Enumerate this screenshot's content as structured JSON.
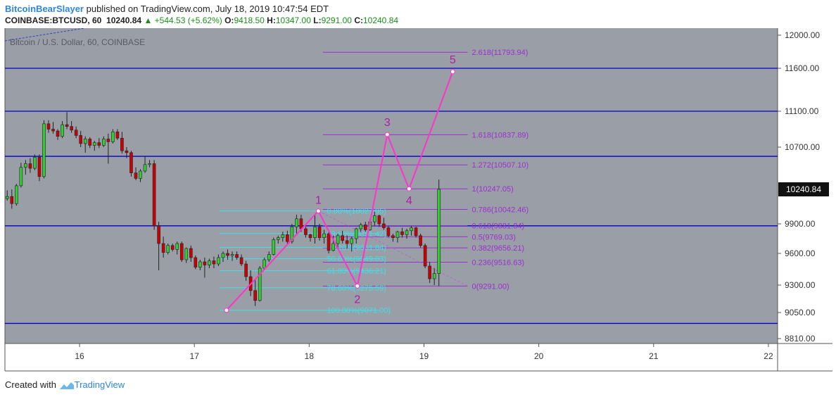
{
  "header": {
    "user": "BitcoinBearSlayer",
    "published_text": " published on TradingView.com, July 18, 2019 10:47:54 EDT",
    "symbol": "COINBASE:BTCUSD, 60",
    "last": "10240.84",
    "change": "+544.53 (+5.62%)",
    "o_label": "O:",
    "o_value": "9418.50",
    "h_label": "H:",
    "h_value": "10347.00",
    "l_label": "L:",
    "l_value": "9291.00",
    "c_label": "C:",
    "c_value": "10240.84"
  },
  "chart_title": "Bitcoin / U.S. Dollar, 60, COINBASE",
  "price_tag": "10240.84",
  "footer": {
    "created_with": "Created with",
    "brand": "TradingView"
  },
  "colors": {
    "background": "#9a9ea6",
    "up": "#33cc33",
    "down": "#cc0000",
    "fib_magenta": "#9b30d0",
    "fib_cyan": "#40e0e8",
    "wave": "#ff33cc",
    "hline": "#0000cc"
  },
  "chart_data": {
    "type": "candlestick",
    "title": "Bitcoin / U.S. Dollar, 60, COINBASE",
    "x_ticks": [
      {
        "label": "16",
        "x": 16
      },
      {
        "label": "17",
        "x": 17
      },
      {
        "label": "18",
        "x": 18
      },
      {
        "label": "19",
        "x": 19
      },
      {
        "label": "20",
        "x": 20
      },
      {
        "label": "21",
        "x": 21
      },
      {
        "label": "22",
        "x": 22
      }
    ],
    "y_ticks": [
      {
        "label": "12000.00",
        "v": 12000
      },
      {
        "label": "11600.00",
        "v": 11600
      },
      {
        "label": "11100.00",
        "v": 11100
      },
      {
        "label": "10700.00",
        "v": 10700
      },
      {
        "label": "9900.00",
        "v": 9900
      },
      {
        "label": "9600.00",
        "v": 9600
      },
      {
        "label": "9300.00",
        "v": 9300
      },
      {
        "label": "9050.00",
        "v": 9050
      },
      {
        "label": "8810.00",
        "v": 8810
      }
    ],
    "xlim": [
      15.35,
      22.08
    ],
    "horizontal_lines": [
      11600,
      11100,
      10600,
      9880,
      8950
    ],
    "candles": [
      [
        15.37,
        10150,
        10230,
        10130,
        10170
      ],
      [
        15.41,
        10170,
        10240,
        10050,
        10100
      ],
      [
        15.45,
        10100,
        10300,
        10080,
        10280
      ],
      [
        15.49,
        10280,
        10530,
        10260,
        10480
      ],
      [
        15.53,
        10480,
        10560,
        10400,
        10520
      ],
      [
        15.57,
        10520,
        10580,
        10420,
        10470
      ],
      [
        15.61,
        10470,
        10620,
        10450,
        10590
      ],
      [
        15.65,
        10590,
        10620,
        10330,
        10380
      ],
      [
        15.69,
        10380,
        11000,
        10360,
        10960
      ],
      [
        15.73,
        10960,
        11000,
        10860,
        10900
      ],
      [
        15.77,
        10900,
        10980,
        10850,
        10880
      ],
      [
        15.81,
        10880,
        10900,
        10780,
        10820
      ],
      [
        15.85,
        10820,
        10990,
        10800,
        10950
      ],
      [
        15.89,
        10950,
        11090,
        10900,
        10930
      ],
      [
        15.93,
        10930,
        10990,
        10860,
        10890
      ],
      [
        15.97,
        10890,
        10930,
        10800,
        10830
      ],
      [
        16.01,
        10830,
        10880,
        10700,
        10740
      ],
      [
        16.05,
        10740,
        10820,
        10640,
        10790
      ],
      [
        16.09,
        10790,
        10810,
        10690,
        10720
      ],
      [
        16.13,
        10720,
        10770,
        10660,
        10750
      ],
      [
        16.17,
        10750,
        10800,
        10690,
        10720
      ],
      [
        16.21,
        10720,
        10820,
        10700,
        10790
      ],
      [
        16.25,
        10790,
        10850,
        10520,
        10760
      ],
      [
        16.29,
        10760,
        10900,
        10740,
        10870
      ],
      [
        16.33,
        10870,
        10900,
        10780,
        10800
      ],
      [
        16.37,
        10800,
        10870,
        10630,
        10660
      ],
      [
        16.41,
        10660,
        10700,
        10580,
        10640
      ],
      [
        16.45,
        10640,
        10660,
        10380,
        10420
      ],
      [
        16.49,
        10420,
        10480,
        10340,
        10360
      ],
      [
        16.53,
        10360,
        10460,
        10320,
        10440
      ],
      [
        16.57,
        10440,
        10600,
        10420,
        10510
      ],
      [
        16.61,
        10510,
        10560,
        10480,
        10520
      ],
      [
        16.65,
        10520,
        10560,
        9840,
        9880
      ],
      [
        16.69,
        9880,
        9920,
        9440,
        9700
      ],
      [
        16.73,
        9700,
        9770,
        9560,
        9610
      ],
      [
        16.77,
        9610,
        9700,
        9590,
        9680
      ],
      [
        16.81,
        9680,
        9700,
        9620,
        9640
      ],
      [
        16.85,
        9640,
        9720,
        9590,
        9700
      ],
      [
        16.89,
        9700,
        9720,
        9520,
        9540
      ],
      [
        16.93,
        9540,
        9660,
        9510,
        9650
      ],
      [
        16.97,
        9650,
        9680,
        9520,
        9560
      ],
      [
        17.01,
        9560,
        9580,
        9450,
        9470
      ],
      [
        17.05,
        9470,
        9540,
        9440,
        9520
      ],
      [
        17.09,
        9520,
        9560,
        9370,
        9490
      ],
      [
        17.13,
        9490,
        9550,
        9460,
        9530
      ],
      [
        17.17,
        9530,
        9570,
        9460,
        9500
      ],
      [
        17.21,
        9500,
        9590,
        9480,
        9560
      ],
      [
        17.25,
        9560,
        9620,
        9520,
        9600
      ],
      [
        17.29,
        9600,
        9640,
        9540,
        9580
      ],
      [
        17.33,
        9580,
        9620,
        9530,
        9590
      ],
      [
        17.37,
        9590,
        9620,
        9540,
        9560
      ],
      [
        17.41,
        9560,
        9590,
        9480,
        9500
      ],
      [
        17.45,
        9500,
        9530,
        9340,
        9380
      ],
      [
        17.49,
        9380,
        9440,
        9200,
        9250
      ],
      [
        17.53,
        9250,
        9350,
        9110,
        9160
      ],
      [
        17.57,
        9160,
        9480,
        9150,
        9460
      ],
      [
        17.61,
        9460,
        9560,
        9440,
        9540
      ],
      [
        17.65,
        9540,
        9620,
        9520,
        9590
      ],
      [
        17.69,
        9590,
        9760,
        9580,
        9740
      ],
      [
        17.73,
        9740,
        9780,
        9700,
        9760
      ],
      [
        17.77,
        9760,
        9820,
        9720,
        9790
      ],
      [
        17.81,
        9790,
        9830,
        9700,
        9720
      ],
      [
        17.85,
        9720,
        9900,
        9700,
        9870
      ],
      [
        17.89,
        9870,
        9990,
        9800,
        9950
      ],
      [
        17.93,
        9950,
        9990,
        9820,
        9850
      ],
      [
        17.97,
        9850,
        9870,
        9760,
        9790
      ],
      [
        18.01,
        9790,
        9800,
        9720,
        9760
      ],
      [
        18.05,
        9760,
        9990,
        9700,
        9870
      ],
      [
        18.09,
        9870,
        9900,
        9730,
        9760
      ],
      [
        18.13,
        9760,
        9840,
        9700,
        9800
      ],
      [
        18.17,
        9800,
        9830,
        9600,
        9630
      ],
      [
        18.21,
        9630,
        9780,
        9620,
        9700
      ],
      [
        18.25,
        9700,
        9800,
        9640,
        9780
      ],
      [
        18.29,
        9780,
        9830,
        9700,
        9730
      ],
      [
        18.33,
        9730,
        9780,
        9650,
        9700
      ],
      [
        18.37,
        9700,
        9770,
        9620,
        9750
      ],
      [
        18.41,
        9750,
        9860,
        9700,
        9850
      ],
      [
        18.45,
        9850,
        9910,
        9820,
        9890
      ],
      [
        18.49,
        9890,
        9920,
        9820,
        9840
      ],
      [
        18.53,
        9840,
        9950,
        9830,
        9920
      ],
      [
        18.57,
        9920,
        10020,
        9880,
        9980
      ],
      [
        18.61,
        9980,
        9990,
        9870,
        9900
      ],
      [
        18.65,
        9900,
        9960,
        9840,
        9860
      ],
      [
        18.69,
        9860,
        9880,
        9760,
        9780
      ],
      [
        18.73,
        9780,
        9800,
        9720,
        9760
      ],
      [
        18.77,
        9760,
        9830,
        9710,
        9820
      ],
      [
        18.81,
        9820,
        9860,
        9760,
        9790
      ],
      [
        18.85,
        9790,
        9850,
        9750,
        9830
      ],
      [
        18.89,
        9830,
        9880,
        9780,
        9860
      ],
      [
        18.93,
        9860,
        9870,
        9760,
        9780
      ],
      [
        18.97,
        9780,
        9800,
        9660,
        9680
      ],
      [
        19.01,
        9680,
        9700,
        9460,
        9480
      ],
      [
        19.05,
        9480,
        9520,
        9320,
        9360
      ],
      [
        19.09,
        9360,
        9460,
        9300,
        9410
      ],
      [
        19.13,
        9410,
        10347,
        9291,
        10240.84
      ]
    ],
    "fib_extension": {
      "levels": [
        {
          "label": "2.618(11793.94)",
          "v": 11793.94
        },
        {
          "label": "1.618(10837.89)",
          "v": 10837.89
        },
        {
          "label": "1.272(10507.10)",
          "v": 10507.1
        },
        {
          "label": "1(10247.05)",
          "v": 10247.05
        },
        {
          "label": "0.786(10042.46)",
          "v": 10042.46
        },
        {
          "label": "0.618(9881.84)",
          "v": 9881.84
        },
        {
          "label": "0.5(9769.03)",
          "v": 9769.03
        },
        {
          "label": "0.382(9656.21)",
          "v": 9656.21
        },
        {
          "label": "0.236(9516.63)",
          "v": 9516.63
        },
        {
          "label": "0(9291.00)",
          "v": 9291.0
        }
      ],
      "x_start": 18.12,
      "x_end": 19.38
    },
    "fib_retracement": {
      "levels": [
        {
          "label": "0.00%(10027.05)",
          "v": 10027.05
        },
        {
          "label": "23.60%(9801.42)",
          "v": 9801.42
        },
        {
          "label": "38.20%(9661.84)",
          "v": 9661.84
        },
        {
          "label": "50.00%(9549.03)",
          "v": 9549.03
        },
        {
          "label": "61.80%(9436.21)",
          "v": 9436.21
        },
        {
          "label": "78.60%(9275.59)",
          "v": 9275.59
        },
        {
          "label": "100.00%(9071.00)",
          "v": 9071.0
        }
      ],
      "x_start": 17.22,
      "x_end": 18.62
    },
    "waves": [
      {
        "label": "",
        "x": 17.28,
        "v": 9071
      },
      {
        "label": "1",
        "x": 18.08,
        "v": 10027
      },
      {
        "label": "2",
        "x": 18.42,
        "v": 9291
      },
      {
        "label": "3",
        "x": 18.68,
        "v": 10840
      },
      {
        "label": "4",
        "x": 18.87,
        "v": 10247
      },
      {
        "label": "5",
        "x": 19.25,
        "v": 11560
      }
    ]
  }
}
